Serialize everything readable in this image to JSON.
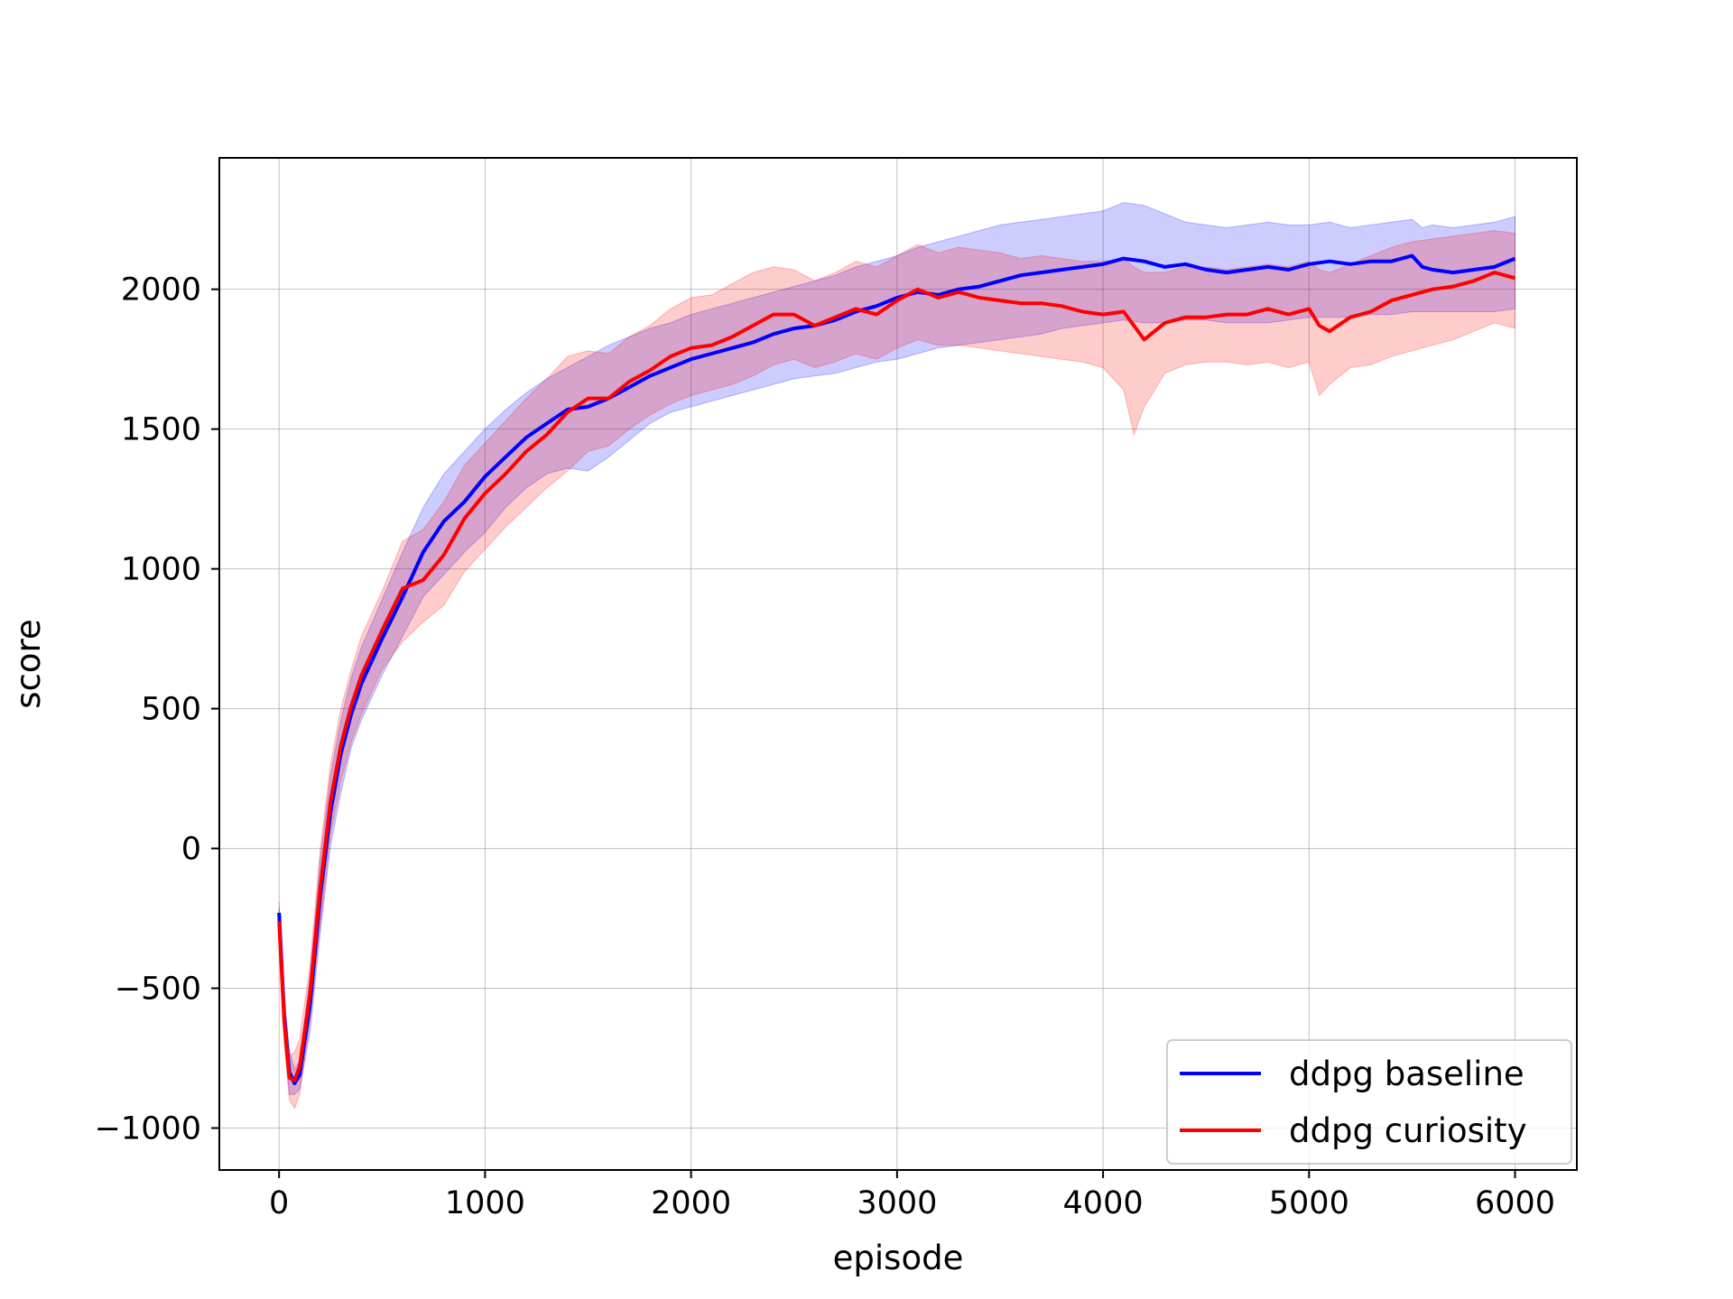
{
  "chart_data": {
    "type": "line",
    "title": "",
    "xlabel": "episode",
    "ylabel": "score",
    "xlim": [
      -290,
      6300
    ],
    "ylim": [
      -1150,
      2470
    ],
    "xticks": [
      0,
      1000,
      2000,
      3000,
      4000,
      5000,
      6000
    ],
    "yticks": [
      -1000,
      -500,
      0,
      500,
      1000,
      1500,
      2000
    ],
    "grid": true,
    "legend_position": "lower right",
    "series": [
      {
        "name": "ddpg baseline",
        "color": "#0000ff",
        "band_color": "#0000ff",
        "x": [
          0,
          25,
          50,
          75,
          100,
          150,
          200,
          250,
          300,
          350,
          400,
          500,
          600,
          700,
          800,
          900,
          1000,
          1100,
          1200,
          1300,
          1400,
          1500,
          1600,
          1700,
          1800,
          1900,
          2000,
          2100,
          2200,
          2300,
          2400,
          2500,
          2600,
          2700,
          2800,
          2900,
          3000,
          3100,
          3200,
          3300,
          3400,
          3500,
          3600,
          3700,
          3800,
          3900,
          4000,
          4100,
          4200,
          4300,
          4400,
          4500,
          4600,
          4700,
          4800,
          4900,
          5000,
          5100,
          5200,
          5300,
          5400,
          5500,
          5550,
          5600,
          5700,
          5800,
          5900,
          6000
        ],
        "mean": [
          -230,
          -600,
          -800,
          -840,
          -810,
          -560,
          -170,
          130,
          340,
          480,
          590,
          750,
          900,
          1060,
          1170,
          1240,
          1330,
          1400,
          1470,
          1520,
          1570,
          1580,
          1610,
          1650,
          1690,
          1720,
          1750,
          1770,
          1790,
          1810,
          1840,
          1860,
          1870,
          1890,
          1920,
          1940,
          1970,
          1990,
          1980,
          2000,
          2010,
          2030,
          2050,
          2060,
          2070,
          2080,
          2090,
          2110,
          2100,
          2080,
          2090,
          2070,
          2060,
          2070,
          2080,
          2070,
          2090,
          2100,
          2090,
          2100,
          2100,
          2120,
          2080,
          2070,
          2060,
          2070,
          2080,
          2110
        ],
        "lower": [
          -300,
          -680,
          -880,
          -880,
          -860,
          -660,
          -300,
          10,
          200,
          360,
          460,
          620,
          760,
          900,
          980,
          1060,
          1130,
          1220,
          1290,
          1340,
          1360,
          1350,
          1400,
          1460,
          1520,
          1560,
          1580,
          1600,
          1620,
          1640,
          1660,
          1680,
          1690,
          1700,
          1720,
          1740,
          1750,
          1770,
          1790,
          1800,
          1810,
          1820,
          1830,
          1840,
          1860,
          1870,
          1880,
          1890,
          1880,
          1880,
          1890,
          1890,
          1880,
          1880,
          1880,
          1890,
          1900,
          1900,
          1900,
          1910,
          1910,
          1920,
          1920,
          1920,
          1920,
          1920,
          1920,
          1930
        ],
        "upper": [
          -210,
          -520,
          -720,
          -790,
          -760,
          -460,
          -40,
          260,
          460,
          610,
          720,
          890,
          1060,
          1220,
          1340,
          1420,
          1500,
          1570,
          1630,
          1680,
          1720,
          1760,
          1800,
          1830,
          1860,
          1880,
          1910,
          1930,
          1950,
          1970,
          1990,
          2010,
          2030,
          2050,
          2080,
          2100,
          2120,
          2150,
          2170,
          2190,
          2210,
          2230,
          2240,
          2250,
          2260,
          2270,
          2280,
          2310,
          2300,
          2270,
          2240,
          2230,
          2220,
          2230,
          2240,
          2230,
          2230,
          2240,
          2220,
          2230,
          2240,
          2250,
          2220,
          2230,
          2220,
          2230,
          2240,
          2260
        ]
      },
      {
        "name": "ddpg curiosity",
        "color": "#ff0000",
        "band_color": "#ff0000",
        "x": [
          0,
          25,
          50,
          75,
          100,
          150,
          200,
          250,
          300,
          350,
          400,
          500,
          600,
          700,
          800,
          900,
          1000,
          1100,
          1200,
          1300,
          1400,
          1500,
          1600,
          1700,
          1800,
          1900,
          2000,
          2100,
          2200,
          2300,
          2400,
          2500,
          2600,
          2700,
          2800,
          2900,
          3000,
          3100,
          3200,
          3300,
          3400,
          3500,
          3600,
          3700,
          3800,
          3900,
          4000,
          4100,
          4150,
          4200,
          4300,
          4400,
          4500,
          4600,
          4700,
          4800,
          4900,
          5000,
          5050,
          5100,
          5200,
          5300,
          5400,
          5500,
          5600,
          5700,
          5800,
          5900,
          6000
        ],
        "mean": [
          -260,
          -620,
          -820,
          -830,
          -780,
          -520,
          -140,
          170,
          370,
          510,
          620,
          780,
          930,
          960,
          1050,
          1180,
          1270,
          1340,
          1420,
          1480,
          1560,
          1610,
          1610,
          1670,
          1710,
          1760,
          1790,
          1800,
          1830,
          1870,
          1910,
          1910,
          1870,
          1900,
          1930,
          1910,
          1960,
          2000,
          1970,
          1990,
          1970,
          1960,
          1950,
          1950,
          1940,
          1920,
          1910,
          1920,
          1870,
          1820,
          1880,
          1900,
          1900,
          1910,
          1910,
          1930,
          1910,
          1930,
          1870,
          1850,
          1900,
          1920,
          1960,
          1980,
          2000,
          2010,
          2030,
          2060,
          2040
        ],
        "lower": [
          -330,
          -700,
          -900,
          -930,
          -880,
          -620,
          -280,
          50,
          240,
          380,
          480,
          640,
          740,
          810,
          870,
          990,
          1070,
          1150,
          1220,
          1290,
          1350,
          1420,
          1440,
          1500,
          1550,
          1590,
          1620,
          1640,
          1660,
          1690,
          1730,
          1750,
          1720,
          1740,
          1770,
          1750,
          1790,
          1820,
          1800,
          1800,
          1790,
          1780,
          1770,
          1760,
          1750,
          1740,
          1720,
          1640,
          1480,
          1580,
          1700,
          1730,
          1740,
          1740,
          1730,
          1740,
          1720,
          1740,
          1620,
          1660,
          1720,
          1730,
          1760,
          1780,
          1800,
          1820,
          1850,
          1880,
          1860
        ],
        "upper": [
          -190,
          -540,
          -740,
          -730,
          -680,
          -420,
          0,
          300,
          500,
          640,
          760,
          920,
          1100,
          1140,
          1240,
          1370,
          1450,
          1530,
          1610,
          1680,
          1760,
          1780,
          1770,
          1830,
          1870,
          1930,
          1970,
          1980,
          2020,
          2060,
          2080,
          2070,
          2030,
          2060,
          2100,
          2080,
          2120,
          2160,
          2130,
          2150,
          2140,
          2130,
          2110,
          2120,
          2110,
          2100,
          2100,
          2110,
          2080,
          2060,
          2060,
          2080,
          2080,
          2070,
          2080,
          2090,
          2080,
          2100,
          2070,
          2060,
          2090,
          2120,
          2150,
          2170,
          2180,
          2190,
          2200,
          2210,
          2200
        ]
      }
    ]
  }
}
